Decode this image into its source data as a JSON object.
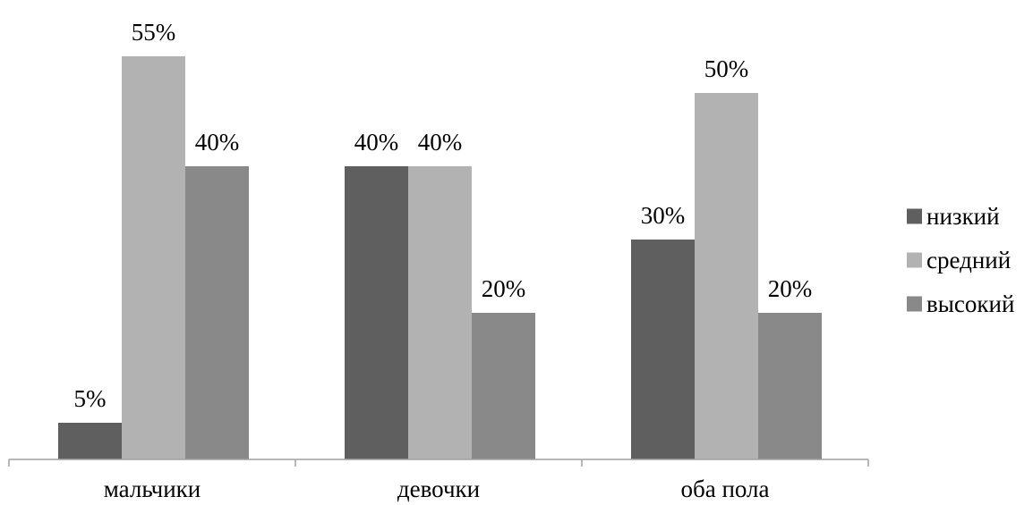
{
  "chart_data": {
    "type": "bar",
    "categories": [
      "мальчики",
      "девочки",
      "оба пола"
    ],
    "series": [
      {
        "name": "низкий",
        "values": [
          5,
          40,
          30
        ],
        "color": "#5f5f5f"
      },
      {
        "name": "средний",
        "values": [
          55,
          40,
          50
        ],
        "color": "#b2b2b2"
      },
      {
        "name": "высокий",
        "values": [
          40,
          20,
          20
        ],
        "color": "#898989"
      }
    ],
    "value_suffix": "%",
    "ylim": [
      0,
      60
    ],
    "grid": false,
    "legend_position": "right",
    "axis_color": "#a0a0a0"
  }
}
